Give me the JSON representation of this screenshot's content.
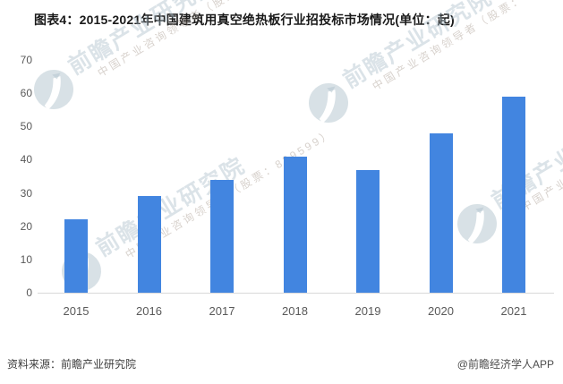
{
  "chart_data": {
    "type": "bar",
    "title": "图表4：2015-2021年中国建筑用真空绝热板行业招投标市场情况(单位：起)",
    "unit": "起",
    "categories": [
      "2015",
      "2016",
      "2017",
      "2018",
      "2019",
      "2020",
      "2021"
    ],
    "values": [
      22,
      29,
      34,
      41,
      37,
      48,
      59
    ],
    "xlabel": "",
    "ylabel": "",
    "ylim": [
      0,
      70
    ],
    "yticks": [
      0,
      10,
      20,
      30,
      40,
      50,
      60,
      70
    ],
    "bar_color": "#4285e0",
    "grid": false,
    "legend": "none"
  },
  "watermark": {
    "brand": "前瞻产业研究院",
    "tagline": "中国产业咨询领导者（股票：839599）"
  },
  "footer": {
    "source": "资料来源：前瞻产业研究院",
    "credit": "@前瞻经济学人APP"
  }
}
